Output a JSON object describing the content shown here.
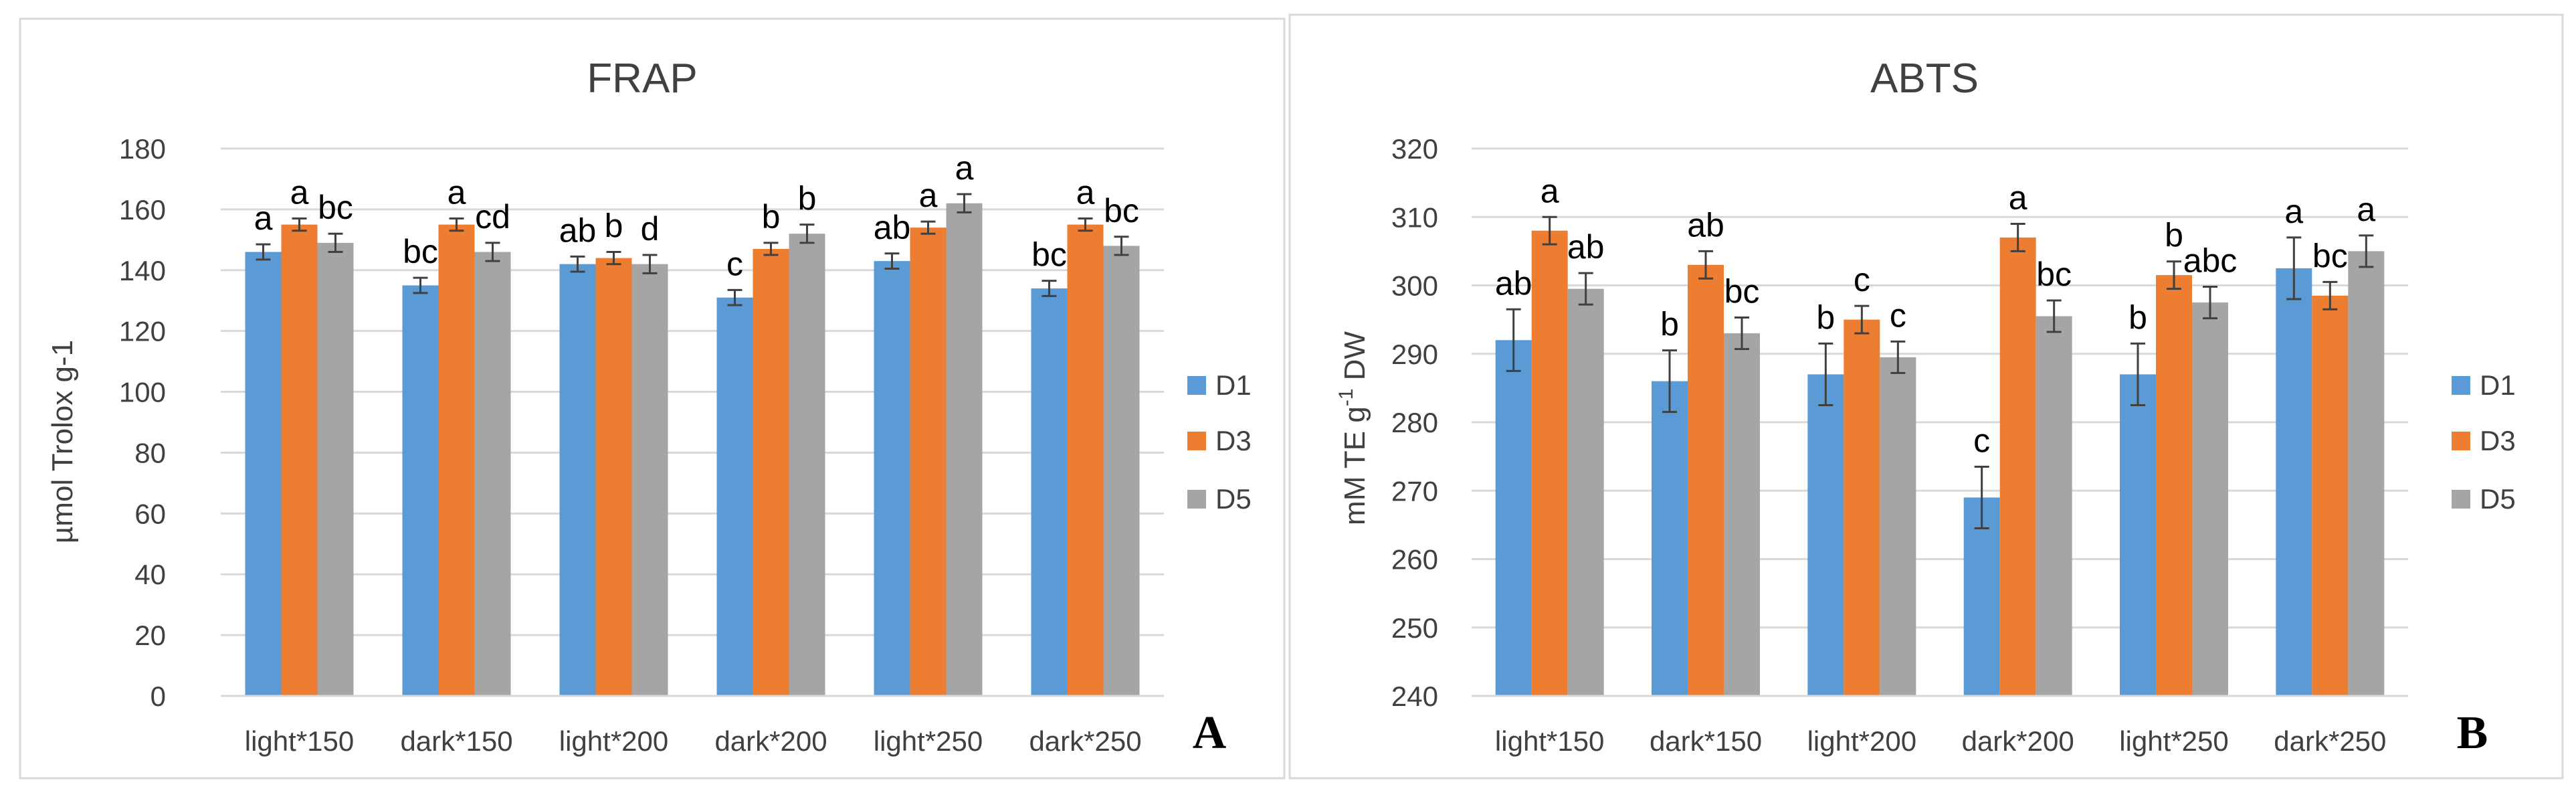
{
  "figure": {
    "panel_labels": [
      "A",
      "B"
    ]
  },
  "chart_data": [
    {
      "type": "bar",
      "title": "FRAP",
      "xlabel": "",
      "ylabel": "µmol Trolox g-1",
      "ylim": [
        0,
        180
      ],
      "ytick_step": 20,
      "yticks": [
        "0",
        "20",
        "40",
        "60",
        "80",
        "100",
        "120",
        "140",
        "160",
        "180"
      ],
      "categories": [
        "light*150",
        "dark*150",
        "light*200",
        "dark*200",
        "light*250",
        "dark*250"
      ],
      "legend_position": "right",
      "grid": true,
      "series": [
        {
          "name": "D1",
          "color": "#5b9bd5",
          "values": [
            146,
            135,
            142,
            131,
            143,
            134
          ],
          "errors": [
            2.5,
            2.5,
            2.5,
            2.5,
            2.5,
            2.5
          ],
          "letters": [
            "a",
            "bc",
            "ab",
            "c",
            "ab",
            "bc"
          ]
        },
        {
          "name": "D3",
          "color": "#ed7d31",
          "values": [
            155,
            155,
            144,
            147,
            154,
            155
          ],
          "errors": [
            2,
            2,
            2,
            2,
            2,
            2
          ],
          "letters": [
            "a",
            "a",
            "b",
            "b",
            "a",
            "a"
          ]
        },
        {
          "name": "D5",
          "color": "#a5a5a5",
          "values": [
            149,
            146,
            142,
            152,
            162,
            148
          ],
          "errors": [
            3,
            3,
            3,
            3,
            3,
            3
          ],
          "letters": [
            "bc",
            "cd",
            "d",
            "b",
            "a",
            "bc"
          ]
        }
      ]
    },
    {
      "type": "bar",
      "title": "ABTS",
      "xlabel": "",
      "ylabel_main": "mM TE g",
      "ylabel_sup": "-1",
      "ylabel_tail": " DW",
      "ylim": [
        240,
        320
      ],
      "ytick_step": 10,
      "yticks": [
        "240",
        "250",
        "260",
        "270",
        "280",
        "290",
        "300",
        "310",
        "320"
      ],
      "categories": [
        "light*150",
        "dark*150",
        "light*200",
        "dark*200",
        "light*250",
        "dark*250"
      ],
      "legend_position": "right",
      "grid": true,
      "series": [
        {
          "name": "D1",
          "color": "#5b9bd5",
          "values": [
            292,
            286,
            287,
            269,
            287,
            302.5
          ],
          "errors": [
            4.5,
            4.5,
            4.5,
            4.5,
            4.5,
            4.5
          ],
          "letters": [
            "ab",
            "b",
            "b",
            "c",
            "b",
            "a"
          ]
        },
        {
          "name": "D3",
          "color": "#ed7d31",
          "values": [
            308,
            303,
            295,
            307,
            301.5,
            298.5
          ],
          "errors": [
            2,
            2,
            2,
            2,
            2,
            2
          ],
          "letters": [
            "a",
            "ab",
            "c",
            "a",
            "b",
            "bc"
          ]
        },
        {
          "name": "D5",
          "color": "#a5a5a5",
          "values": [
            299.5,
            293,
            289.5,
            295.5,
            297.5,
            305
          ],
          "errors": [
            2.3,
            2.3,
            2.3,
            2.3,
            2.3,
            2.3
          ],
          "letters": [
            "ab",
            "bc",
            "c",
            "bc",
            "abc",
            "a"
          ]
        }
      ]
    }
  ]
}
